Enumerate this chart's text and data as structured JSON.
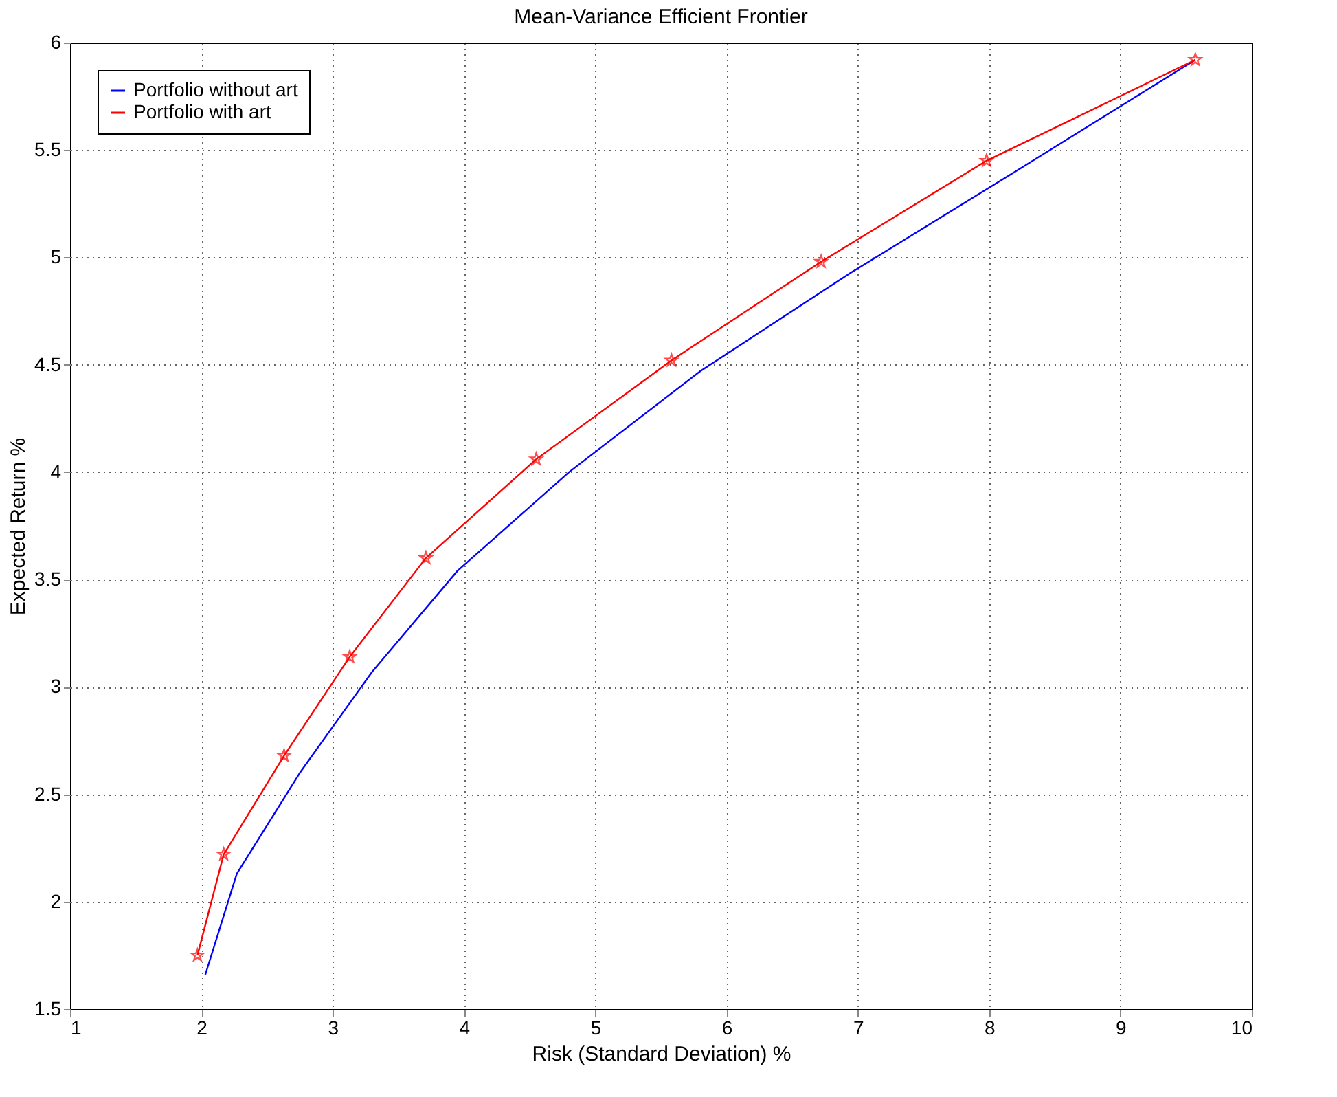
{
  "chart_data": {
    "type": "line",
    "title": "Mean-Variance Efficient Frontier",
    "xlabel": "Risk (Standard Deviation) %",
    "ylabel": "Expected Return %",
    "xlim": [
      1,
      10
    ],
    "xticks": [
      1,
      2,
      3,
      4,
      5,
      6,
      7,
      8,
      9,
      10
    ],
    "ylim": [
      1.5,
      6
    ],
    "yticks": [
      1.5,
      2,
      2.5,
      3,
      3.5,
      4,
      4.5,
      5,
      5.5,
      6
    ],
    "grid": true,
    "legend": "top left",
    "series": [
      {
        "name": "Portfolio without art",
        "color": "#0000ff",
        "marker": "none",
        "x": [
          2.03,
          2.27,
          2.75,
          3.3,
          3.95,
          4.8,
          5.8,
          6.95,
          8.2,
          9.57
        ],
        "values": [
          1.66,
          2.13,
          2.6,
          3.07,
          3.54,
          4.0,
          4.47,
          4.93,
          5.4,
          5.92
        ]
      },
      {
        "name": "Portfolio with art",
        "color": "#ff0000",
        "marker": "star",
        "x": [
          1.97,
          2.17,
          2.63,
          3.13,
          3.71,
          4.55,
          5.58,
          6.72,
          7.98,
          9.57
        ],
        "values": [
          1.75,
          2.22,
          2.68,
          3.14,
          3.6,
          4.06,
          4.52,
          4.98,
          5.45,
          5.92
        ]
      }
    ]
  }
}
